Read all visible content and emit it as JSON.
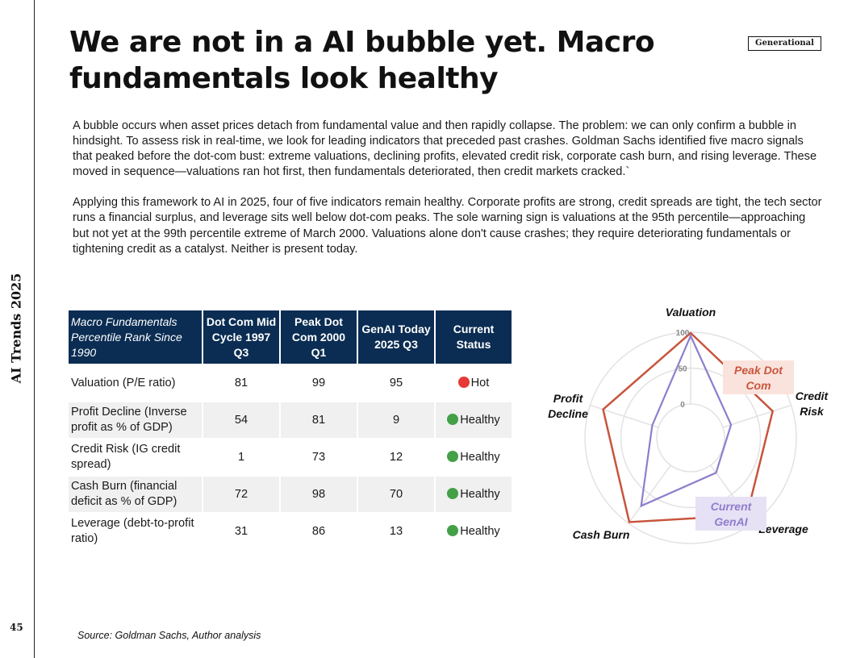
{
  "side_title": "AI Trends 2025",
  "page_number": "45",
  "title": "We are not in a AI bubble yet. Macro fundamentals look healthy",
  "badge": "Generational",
  "paragraphs": [
    "A bubble occurs when asset prices detach from fundamental value and then rapidly collapse. The problem: we can only confirm a bubble in hindsight. To assess risk in real-time, we look for leading indicators that preceded past crashes. Goldman Sachs identified five macro signals that peaked before the dot-com bust: extreme valuations, declining profits, elevated credit risk, corporate cash burn, and rising leverage. These moved in sequence—valuations ran hot first, then fundamentals deteriorated, then credit markets cracked.`",
    "Applying this framework to AI in 2025, four of five indicators remain healthy. Corporate profits are strong, credit spreads are tight, the tech sector runs a financial surplus, and leverage sits well below dot-com peaks. The sole warning sign is valuations at the 95th percentile—approaching but not yet at the 99th percentile extreme of March 2000. Valuations alone don't cause crashes; they require deteriorating fundamentals or tightening credit as a catalyst. Neither is present today."
  ],
  "table": {
    "headers": [
      "Macro Fundamentals Percentile Rank Since 1990",
      "Dot Com Mid Cycle 1997 Q3",
      "Peak Dot Com 2000 Q1",
      "GenAI Today 2025 Q3",
      "Current Status"
    ],
    "rows": [
      {
        "label": "Valuation (P/E ratio)",
        "v1": "81",
        "v2": "99",
        "v3": "95",
        "status": "Hot",
        "status_color": "#e53935"
      },
      {
        "label": "Profit Decline (Inverse profit as % of GDP)",
        "v1": "54",
        "v2": "81",
        "v3": "9",
        "status": "Healthy",
        "status_color": "#43a047"
      },
      {
        "label": "Credit Risk (IG credit spread)",
        "v1": "1",
        "v2": "73",
        "v3": "12",
        "status": "Healthy",
        "status_color": "#43a047"
      },
      {
        "label": "Cash Burn (financial deficit as % of GDP)",
        "v1": "72",
        "v2": "98",
        "v3": "70",
        "status": "Healthy",
        "status_color": "#43a047"
      },
      {
        "label": "Leverage (debt-to-profit ratio)",
        "v1": "31",
        "v2": "86",
        "v3": "13",
        "status": "Healthy",
        "status_color": "#43a047"
      }
    ]
  },
  "chart_data": {
    "type": "radar",
    "axes": [
      "Valuation",
      "Credit Risk",
      "Leverage",
      "Cash Burn",
      "Profit Decline"
    ],
    "ticks": [
      "0",
      "50",
      "100"
    ],
    "range": [
      0,
      100
    ],
    "series": [
      {
        "name": "Peak Dot Com",
        "color": "#c8553d",
        "values": [
          99,
          73,
          86,
          98,
          81
        ]
      },
      {
        "name": "Current GenAI",
        "color": "#8f7dcc",
        "values": [
          95,
          12,
          13,
          70,
          9
        ]
      }
    ]
  },
  "source": "Source: Goldman Sachs, Author analysis"
}
